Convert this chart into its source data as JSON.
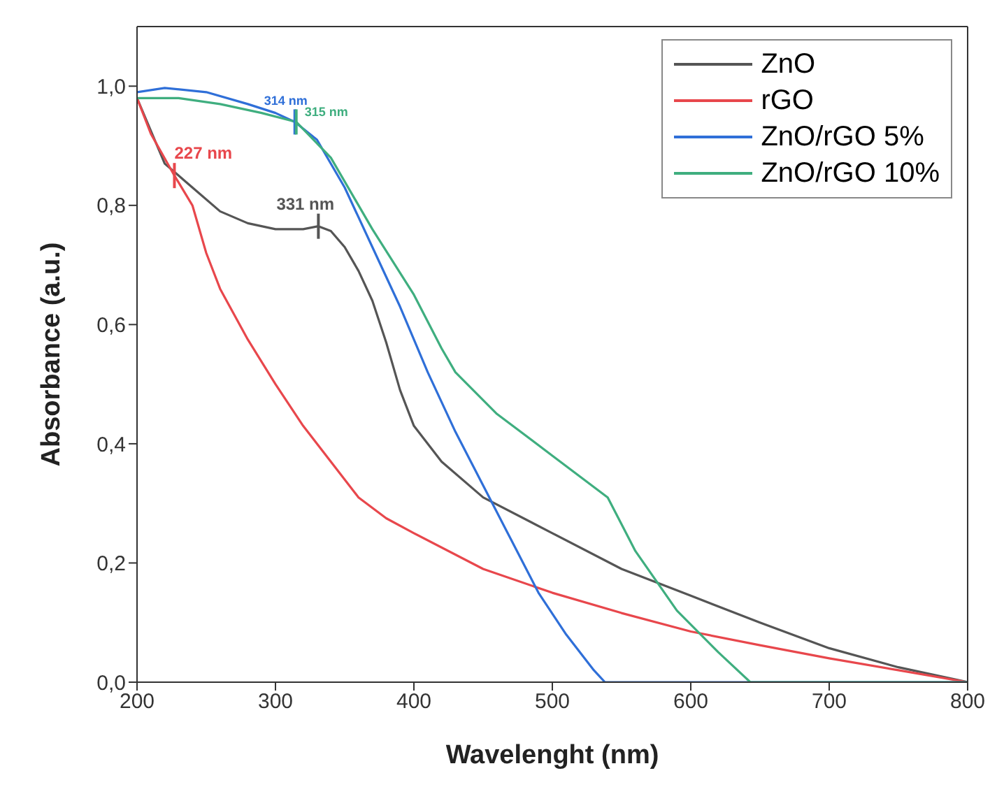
{
  "chart_data": {
    "type": "line",
    "xlabel": "Wavelenght (nm)",
    "ylabel": "Absorbance (a.u.)",
    "xlim": [
      200,
      800
    ],
    "xticks": [
      200,
      300,
      400,
      500,
      600,
      700,
      800
    ],
    "ylim": [
      0,
      1.1
    ],
    "yticks": [
      {
        "value": 0,
        "label": "0,0"
      },
      {
        "value": 0.2,
        "label": "0,2"
      },
      {
        "value": 0.4,
        "label": "0,4"
      },
      {
        "value": 0.6,
        "label": "0,6"
      },
      {
        "value": 0.8,
        "label": "0,8"
      },
      {
        "value": 1.0,
        "label": "1,0"
      }
    ],
    "legend": "top right",
    "marker": "none",
    "line_style": "solid",
    "series": [
      {
        "name": "ZnO",
        "color": "#555555",
        "x": [
          200,
          220,
          240,
          260,
          280,
          300,
          320,
          331,
          340,
          350,
          360,
          370,
          380,
          390,
          400,
          420,
          450,
          500,
          550,
          600,
          650,
          700,
          750,
          800
        ],
        "values": [
          0.98,
          0.87,
          0.83,
          0.79,
          0.77,
          0.76,
          0.76,
          0.765,
          0.757,
          0.73,
          0.69,
          0.64,
          0.57,
          0.49,
          0.43,
          0.37,
          0.31,
          0.25,
          0.19,
          0.145,
          0.1,
          0.057,
          0.025,
          0
        ]
      },
      {
        "name": "rGO",
        "color": "#e8474c",
        "x": [
          200,
          210,
          227,
          240,
          250,
          260,
          280,
          300,
          320,
          340,
          360,
          380,
          400,
          450,
          500,
          550,
          600,
          650,
          700,
          750,
          800
        ],
        "values": [
          0.98,
          0.92,
          0.85,
          0.8,
          0.72,
          0.66,
          0.575,
          0.5,
          0.43,
          0.37,
          0.31,
          0.275,
          0.25,
          0.19,
          0.15,
          0.116,
          0.085,
          0.062,
          0.04,
          0.02,
          0
        ]
      },
      {
        "name": "ZnO/rGO 5%",
        "color": "#2f6fd8",
        "x": [
          200,
          220,
          250,
          280,
          300,
          314,
          330,
          350,
          370,
          390,
          410,
          430,
          450,
          470,
          490,
          510,
          530,
          538,
          600,
          700,
          800
        ],
        "values": [
          0.99,
          0.997,
          0.99,
          0.97,
          0.955,
          0.94,
          0.91,
          0.83,
          0.73,
          0.63,
          0.52,
          0.42,
          0.33,
          0.24,
          0.15,
          0.08,
          0.02,
          0,
          0,
          0,
          0
        ]
      },
      {
        "name": "ZnO/rGO 10%",
        "color": "#3fae7f",
        "x": [
          200,
          230,
          260,
          290,
          315,
          340,
          370,
          400,
          420,
          430,
          460,
          500,
          540,
          560,
          590,
          620,
          643,
          700,
          800
        ],
        "values": [
          0.98,
          0.98,
          0.97,
          0.955,
          0.94,
          0.88,
          0.76,
          0.65,
          0.56,
          0.52,
          0.45,
          0.38,
          0.31,
          0.22,
          0.12,
          0.05,
          0,
          0,
          0
        ]
      }
    ],
    "annotations": [
      {
        "text": "227 nm",
        "x": 227,
        "y": 0.85
      },
      {
        "text": "331 nm",
        "x": 331,
        "y": 0.765
      },
      {
        "text": "314 nm",
        "x": 314,
        "y": 0.94
      },
      {
        "text": "315 nm",
        "x": 315,
        "y": 0.94
      }
    ]
  }
}
